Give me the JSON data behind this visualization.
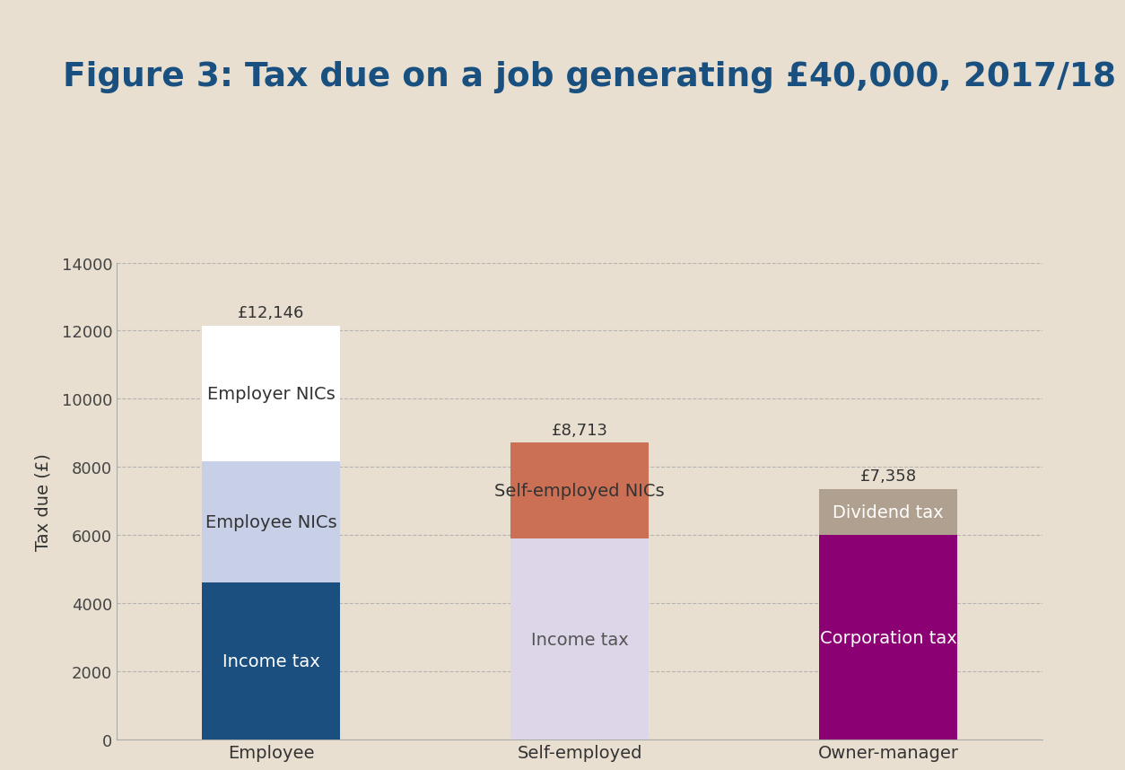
{
  "title": "Figure 3: Tax due on a job generating £40,000, 2017/18",
  "ylabel": "Tax due (£)",
  "background_color": "#e8dfd0",
  "top_bar_color": "#2060a0",
  "title_color": "#1a5080",
  "categories": [
    "Employee",
    "Self-employed",
    "Owner-manager"
  ],
  "segments": {
    "Employee": {
      "Income tax": {
        "value": 4600,
        "color": "#1a4f80",
        "label": "Income tax",
        "text_color": "white"
      },
      "Employee NICs": {
        "value": 3560,
        "color": "#c8d0e8",
        "label": "Employee NICs",
        "text_color": "#333333"
      },
      "Employer NICs": {
        "value": 3986,
        "color": "#ffffff",
        "label": "Employer NICs",
        "text_color": "#333333"
      }
    },
    "Self-employed": {
      "Income tax": {
        "value": 5900,
        "color": "#ddd5e8",
        "label": "Income tax",
        "text_color": "#555555"
      },
      "Self-employed NICs": {
        "value": 2813,
        "color": "#cc7055",
        "label": "Self-employed NICs",
        "text_color": "#333333"
      }
    },
    "Owner-manager": {
      "Corporation tax": {
        "value": 6000,
        "color": "#8b0072",
        "label": "Corporation tax",
        "text_color": "white"
      },
      "Dividend tax": {
        "value": 1358,
        "color": "#b0a090",
        "label": "Dividend tax",
        "text_color": "white"
      }
    }
  },
  "totals": {
    "Employee": {
      "value": 12146,
      "label": "£12,146"
    },
    "Self-employed": {
      "value": 8713,
      "label": "£8,713"
    },
    "Owner-manager": {
      "value": 7358,
      "label": "£7,358"
    }
  },
  "ylim": [
    0,
    14000
  ],
  "yticks": [
    0,
    2000,
    4000,
    6000,
    8000,
    10000,
    12000,
    14000
  ],
  "grid_color": "#aaaaaa",
  "axis_color": "#aaaaaa",
  "bar_width": 0.45,
  "title_fontsize": 27,
  "label_fontsize": 14,
  "tick_fontsize": 13,
  "total_label_fontsize": 13
}
